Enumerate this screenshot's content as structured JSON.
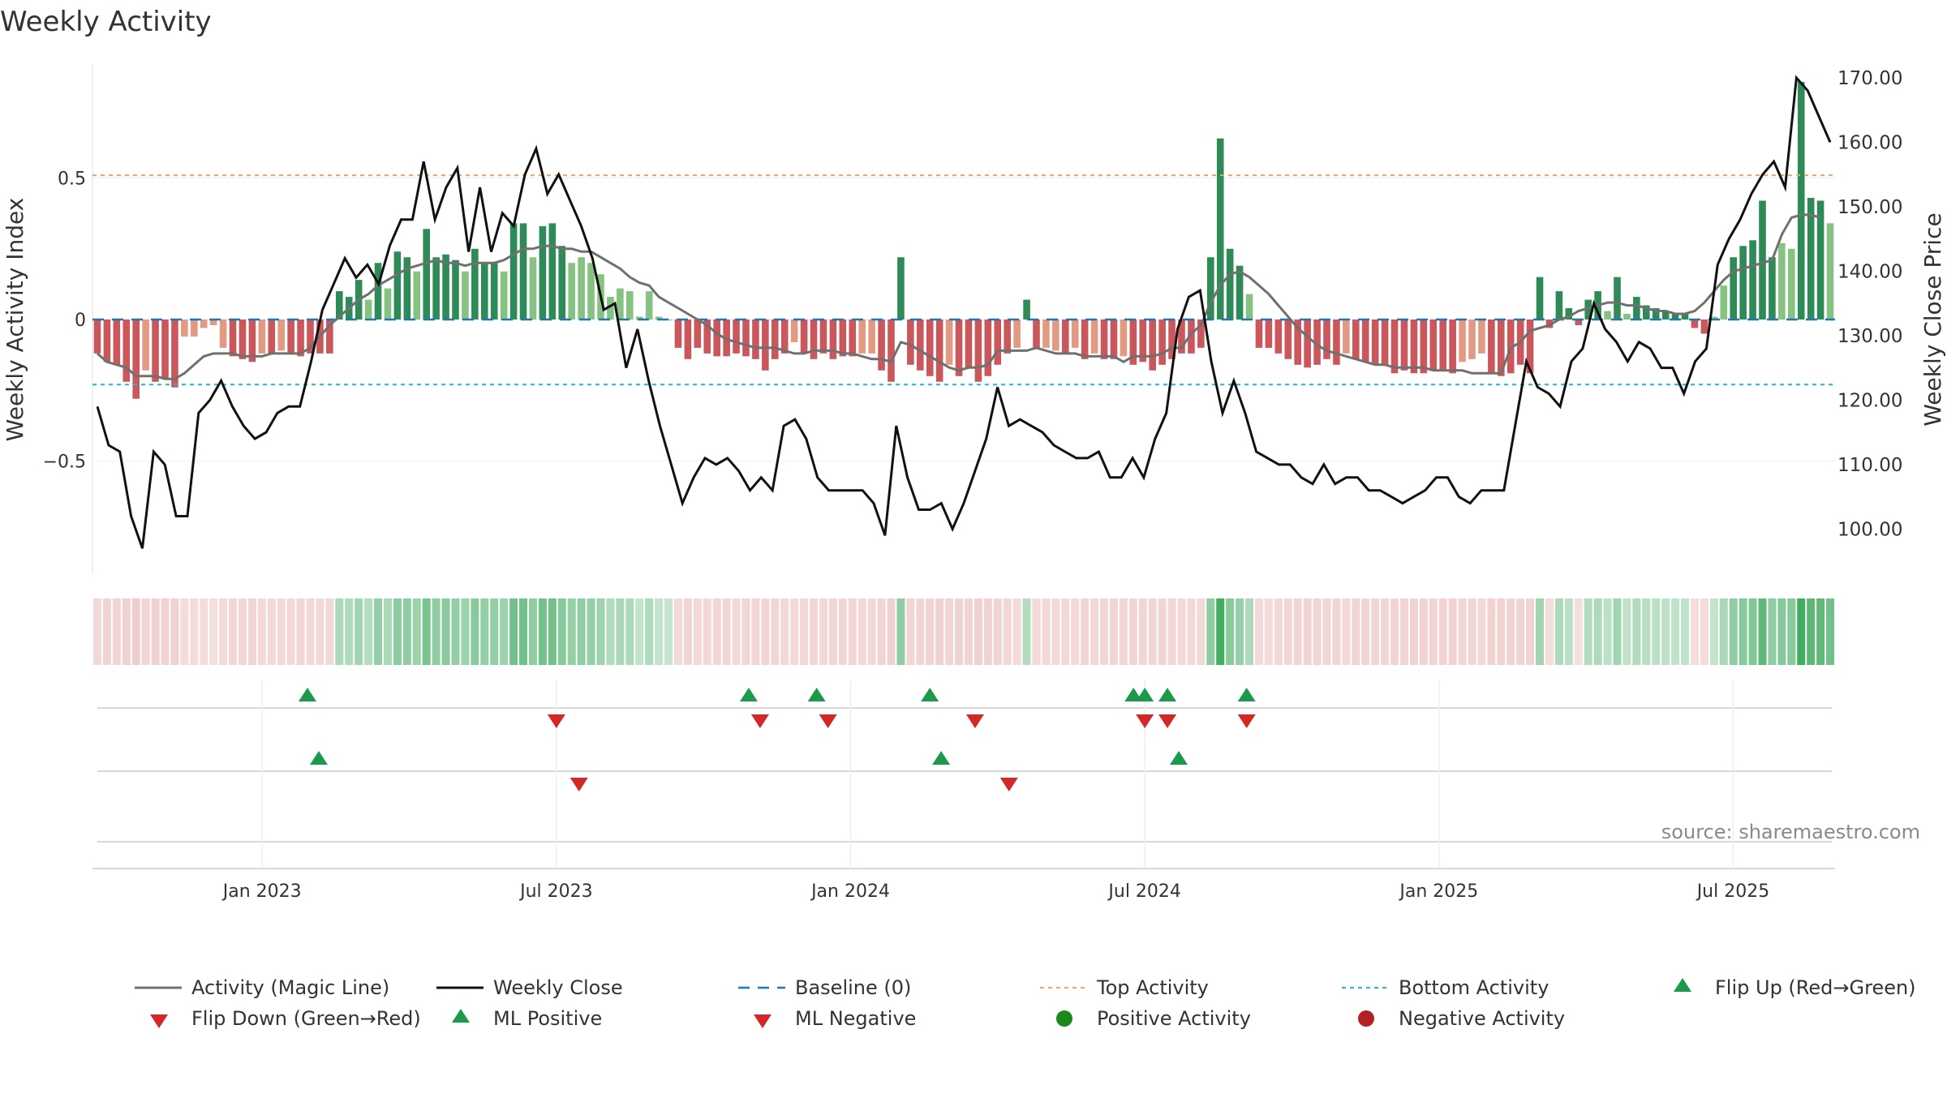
{
  "chart_data": {
    "type": "bar",
    "title": "Weekly Activity",
    "ylabel_left": "Weekly Activity Index",
    "ylabel_right": "Weekly Close Price",
    "source": "source: sharemaestro.com",
    "y_left_range": [
      -0.9,
      0.9
    ],
    "y_left_ticks": [
      {
        "v": 0.5,
        "label": "0.5"
      },
      {
        "v": 0,
        "label": "0"
      },
      {
        "v": -0.5,
        "label": "−0.5"
      }
    ],
    "y_right_range": [
      93,
      172
    ],
    "y_right_ticks": [
      {
        "v": 170,
        "label": "170.00"
      },
      {
        "v": 160,
        "label": "160.00"
      },
      {
        "v": 150,
        "label": "150.00"
      },
      {
        "v": 140,
        "label": "140.00"
      },
      {
        "v": 130,
        "label": "130.00"
      },
      {
        "v": 120,
        "label": "120.00"
      },
      {
        "v": 110,
        "label": "110.00"
      },
      {
        "v": 100,
        "label": "100.00"
      }
    ],
    "x_range": [
      -15,
      139
    ],
    "x_ticks": [
      {
        "w": 0,
        "label": "Jan 2023"
      },
      {
        "w": 26,
        "label": "Jul 2023"
      },
      {
        "w": 52,
        "label": "Jan 2024"
      },
      {
        "w": 78,
        "label": "Jul 2024"
      },
      {
        "w": 104,
        "label": "Jan 2025"
      },
      {
        "w": 130,
        "label": "Jul 2025"
      }
    ],
    "top_activity": 0.51,
    "bottom_activity": -0.23,
    "baseline": 0,
    "weekly_activity": [
      -0.12,
      -0.15,
      -0.16,
      -0.22,
      -0.28,
      -0.18,
      -0.22,
      -0.21,
      -0.24,
      -0.06,
      -0.06,
      -0.03,
      -0.02,
      -0.1,
      -0.13,
      -0.14,
      -0.15,
      -0.12,
      -0.12,
      -0.11,
      -0.12,
      -0.13,
      -0.12,
      -0.12,
      -0.12,
      0.1,
      0.08,
      0.14,
      0.07,
      0.2,
      0.11,
      0.24,
      0.22,
      0.17,
      0.32,
      0.22,
      0.23,
      0.21,
      0.17,
      0.25,
      0.2,
      0.2,
      0.17,
      0.34,
      0.34,
      0.22,
      0.33,
      0.34,
      0.26,
      0.2,
      0.22,
      0.2,
      0.16,
      0.08,
      0.11,
      0.1,
      0.01,
      0.1,
      0.01,
      0.0,
      -0.1,
      -0.14,
      -0.1,
      -0.12,
      -0.13,
      -0.13,
      -0.12,
      -0.13,
      -0.14,
      -0.18,
      -0.14,
      -0.12,
      -0.08,
      -0.12,
      -0.14,
      -0.12,
      -0.14,
      -0.13,
      -0.13,
      -0.12,
      -0.12,
      -0.18,
      -0.22,
      0.22,
      -0.16,
      -0.18,
      -0.2,
      -0.22,
      -0.16,
      -0.2,
      -0.17,
      -0.22,
      -0.2,
      -0.16,
      -0.12,
      -0.1,
      0.07,
      -0.1,
      -0.1,
      -0.11,
      -0.12,
      -0.1,
      -0.14,
      -0.12,
      -0.14,
      -0.14,
      -0.13,
      -0.16,
      -0.15,
      -0.18,
      -0.16,
      -0.14,
      -0.12,
      -0.12,
      -0.1,
      0.22,
      0.64,
      0.25,
      0.19,
      0.09,
      -0.1,
      -0.1,
      -0.12,
      -0.14,
      -0.16,
      -0.17,
      -0.16,
      -0.14,
      -0.16,
      -0.12,
      -0.14,
      -0.15,
      -0.16,
      -0.16,
      -0.19,
      -0.18,
      -0.19,
      -0.19,
      -0.18,
      -0.18,
      -0.19,
      -0.15,
      -0.14,
      -0.12,
      -0.19,
      -0.2,
      -0.19,
      -0.16,
      -0.19,
      0.15,
      -0.03,
      0.1,
      0.04,
      -0.02,
      0.07,
      0.1,
      0.03,
      0.15,
      0.02,
      0.08,
      0.05,
      0.04,
      0.03,
      0.02,
      0.02,
      -0.03,
      -0.05,
      0.01,
      0.12,
      0.22,
      0.26,
      0.28,
      0.42,
      0.22,
      0.27,
      0.25,
      0.84,
      0.43,
      0.42,
      0.34
    ],
    "magic_line": [
      -0.12,
      -0.15,
      -0.16,
      -0.17,
      -0.2,
      -0.2,
      -0.2,
      -0.21,
      -0.21,
      -0.19,
      -0.16,
      -0.13,
      -0.12,
      -0.12,
      -0.12,
      -0.13,
      -0.13,
      -0.13,
      -0.12,
      -0.12,
      -0.12,
      -0.12,
      -0.1,
      -0.06,
      -0.02,
      0.01,
      0.04,
      0.07,
      0.09,
      0.12,
      0.14,
      0.16,
      0.18,
      0.19,
      0.2,
      0.21,
      0.2,
      0.2,
      0.19,
      0.2,
      0.2,
      0.2,
      0.21,
      0.23,
      0.25,
      0.25,
      0.26,
      0.26,
      0.25,
      0.25,
      0.24,
      0.24,
      0.22,
      0.2,
      0.18,
      0.15,
      0.13,
      0.12,
      0.08,
      0.06,
      0.04,
      0.02,
      0.0,
      -0.02,
      -0.05,
      -0.07,
      -0.08,
      -0.09,
      -0.1,
      -0.1,
      -0.1,
      -0.11,
      -0.12,
      -0.12,
      -0.11,
      -0.11,
      -0.11,
      -0.12,
      -0.12,
      -0.13,
      -0.14,
      -0.14,
      -0.15,
      -0.08,
      -0.09,
      -0.11,
      -0.13,
      -0.15,
      -0.17,
      -0.18,
      -0.17,
      -0.17,
      -0.16,
      -0.11,
      -0.11,
      -0.11,
      -0.11,
      -0.1,
      -0.11,
      -0.12,
      -0.12,
      -0.12,
      -0.13,
      -0.13,
      -0.13,
      -0.13,
      -0.15,
      -0.13,
      -0.13,
      -0.13,
      -0.12,
      -0.1,
      -0.1,
      -0.05,
      -0.02,
      0.06,
      0.12,
      0.16,
      0.17,
      0.15,
      0.12,
      0.09,
      0.05,
      0.01,
      -0.03,
      -0.06,
      -0.09,
      -0.11,
      -0.12,
      -0.13,
      -0.14,
      -0.15,
      -0.16,
      -0.16,
      -0.17,
      -0.17,
      -0.17,
      -0.17,
      -0.18,
      -0.18,
      -0.18,
      -0.18,
      -0.19,
      -0.19,
      -0.19,
      -0.19,
      -0.1,
      -0.08,
      -0.04,
      -0.03,
      -0.02,
      0.0,
      0.01,
      0.03,
      0.04,
      0.05,
      0.06,
      0.06,
      0.05,
      0.05,
      0.04,
      0.03,
      0.03,
      0.02,
      0.02,
      0.03,
      0.06,
      0.1,
      0.14,
      0.17,
      0.18,
      0.19,
      0.2,
      0.21,
      0.3,
      0.36,
      0.37,
      0.37,
      0.36
    ],
    "weekly_close": [
      119,
      113,
      112,
      102,
      97,
      112,
      110,
      102,
      102,
      118,
      120,
      123,
      119,
      116,
      114,
      115,
      118,
      119,
      119,
      126,
      134,
      138,
      142,
      139,
      141,
      138,
      144,
      148,
      148,
      157,
      148,
      153,
      156,
      143,
      153,
      143,
      149,
      147,
      155,
      159,
      152,
      155,
      151,
      147,
      142,
      134,
      135,
      125,
      131,
      123,
      116,
      110,
      104,
      108,
      111,
      110,
      111,
      109,
      106,
      108,
      106,
      116,
      117,
      114,
      108,
      106,
      106,
      106,
      106,
      104,
      99,
      116,
      108,
      103,
      103,
      104,
      100,
      104,
      109,
      114,
      122,
      116,
      117,
      116,
      115,
      113,
      112,
      111,
      111,
      112,
      108,
      108,
      111,
      108,
      114,
      118,
      131,
      136,
      137,
      126,
      118,
      123,
      118,
      112,
      111,
      110,
      110,
      108,
      107,
      110,
      107,
      108,
      108,
      106,
      106,
      105,
      104,
      105,
      106,
      108,
      108,
      105,
      104,
      106,
      106,
      106,
      116,
      126,
      122,
      121,
      119,
      126,
      128,
      135,
      131,
      129,
      126,
      129,
      128,
      125,
      125,
      121,
      126,
      128,
      141,
      145,
      148,
      152,
      155,
      157,
      153,
      170,
      168,
      164,
      160
    ],
    "flip_up": [
      4,
      43,
      49,
      59,
      77,
      78,
      80,
      87
    ],
    "flip_down": [
      26,
      44,
      50,
      63,
      78,
      80,
      87
    ],
    "ml_positive": [
      5,
      60,
      81
    ],
    "ml_negative": [
      28,
      66
    ],
    "legend": [
      {
        "label": "Activity (Magic Line)",
        "marker": "line-gray"
      },
      {
        "label": "Weekly Close",
        "marker": "line-black"
      },
      {
        "label": "Baseline (0)",
        "marker": "dash-blue"
      },
      {
        "label": "Top Activity",
        "marker": "dot-orange"
      },
      {
        "label": "Bottom Activity",
        "marker": "dot-cyan"
      },
      {
        "label": "Flip Up (Red→Green)",
        "marker": "tri-up"
      },
      {
        "label": "Flip Down (Green→Red)",
        "marker": "tri-down"
      },
      {
        "label": "ML Positive",
        "marker": "tri-up"
      },
      {
        "label": "ML Negative",
        "marker": "tri-down"
      },
      {
        "label": "Positive Activity",
        "marker": "circle-green"
      },
      {
        "label": "Negative Activity",
        "marker": "circle-red"
      }
    ]
  },
  "colors": {
    "bar_pos_dark": "#2e8b57",
    "bar_pos_light": "#86c382",
    "bar_neg_dark": "#c9575b",
    "bar_neg_light": "#e39a82",
    "magic_line": "#707070",
    "close_line": "#111111",
    "baseline": "#1f77b4",
    "top_line": "#f4a261",
    "bottom_line": "#17becf",
    "flip_up": "#1a9a4a",
    "flip_down": "#d62728",
    "pos_circle": "#1a8a1a",
    "neg_circle": "#b22222"
  }
}
